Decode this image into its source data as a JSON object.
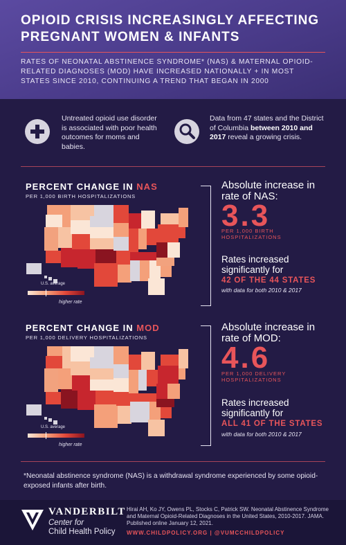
{
  "hero": {
    "title": "Opioid Crisis Increasingly Affecting Pregnant Women & Infants",
    "subtitle": "Rates of neonatal abstinence syndrome* (NAS) & maternal opioid-related diagnoses (MOD) have increased nationally + in most states since 2010, continuing a trend that began in 2000"
  },
  "facts": [
    {
      "icon": "plus-icon",
      "text": "Untreated opioid use disorder is associated with poor health outcomes for moms and babies."
    },
    {
      "icon": "magnifier-icon",
      "text_before": "Data from 47 states and the District of Columbia ",
      "text_bold": "between 2010 and 2017",
      "text_after": " reveal a growing crisis."
    }
  ],
  "nas": {
    "title_prefix": "Percent change in ",
    "title_highlight": "NAS",
    "subtitle": "per 1,000 birth hospitalizations",
    "stat_heading": "Absolute increase in rate of NAS:",
    "value": "3.3",
    "unit": "per 1,000 birth hospitalizations",
    "sig_text": "Rates increased significantly for",
    "sig_highlight": "42 of the 44 states",
    "note": "with data for both 2010 & 2017"
  },
  "mod": {
    "title_prefix": "Percent change in ",
    "title_highlight": "MOD",
    "subtitle": "per 1,000 delivery hospitalizations",
    "stat_heading": "Absolute increase in rate of MOD:",
    "value": "4.6",
    "unit": "per 1,000 delivery hospitalizations",
    "sig_text": "Rates increased significantly for",
    "sig_highlight": "All 41 of the states",
    "note": "with data for both 2010 & 2017"
  },
  "legend": {
    "avg_label": "U.S. average",
    "rate_label": "higher rate"
  },
  "footnote": "*Neonatal abstinence syndrome (NAS) is a withdrawal syndrome experienced by some opioid-exposed infants after birth.",
  "footer": {
    "org_name": "Vanderbilt",
    "center_line1": "Center for",
    "center_line2": "Child Health Policy",
    "citation": "Hirai AH, Ko JY, Owens PL, Stocks C, Patrick SW. Neonatal Abstinence Syndrome and Maternal Opioid-Related Diagnoses in the United States, 2010-2017. JAMA. Published online January 12, 2021.",
    "website": "www.childpolicy.org",
    "handle": "@VUMCchildpolicy"
  },
  "colors": {
    "accent": "#e8555a",
    "background": "#231b45",
    "hero": "#4a3b8a"
  }
}
